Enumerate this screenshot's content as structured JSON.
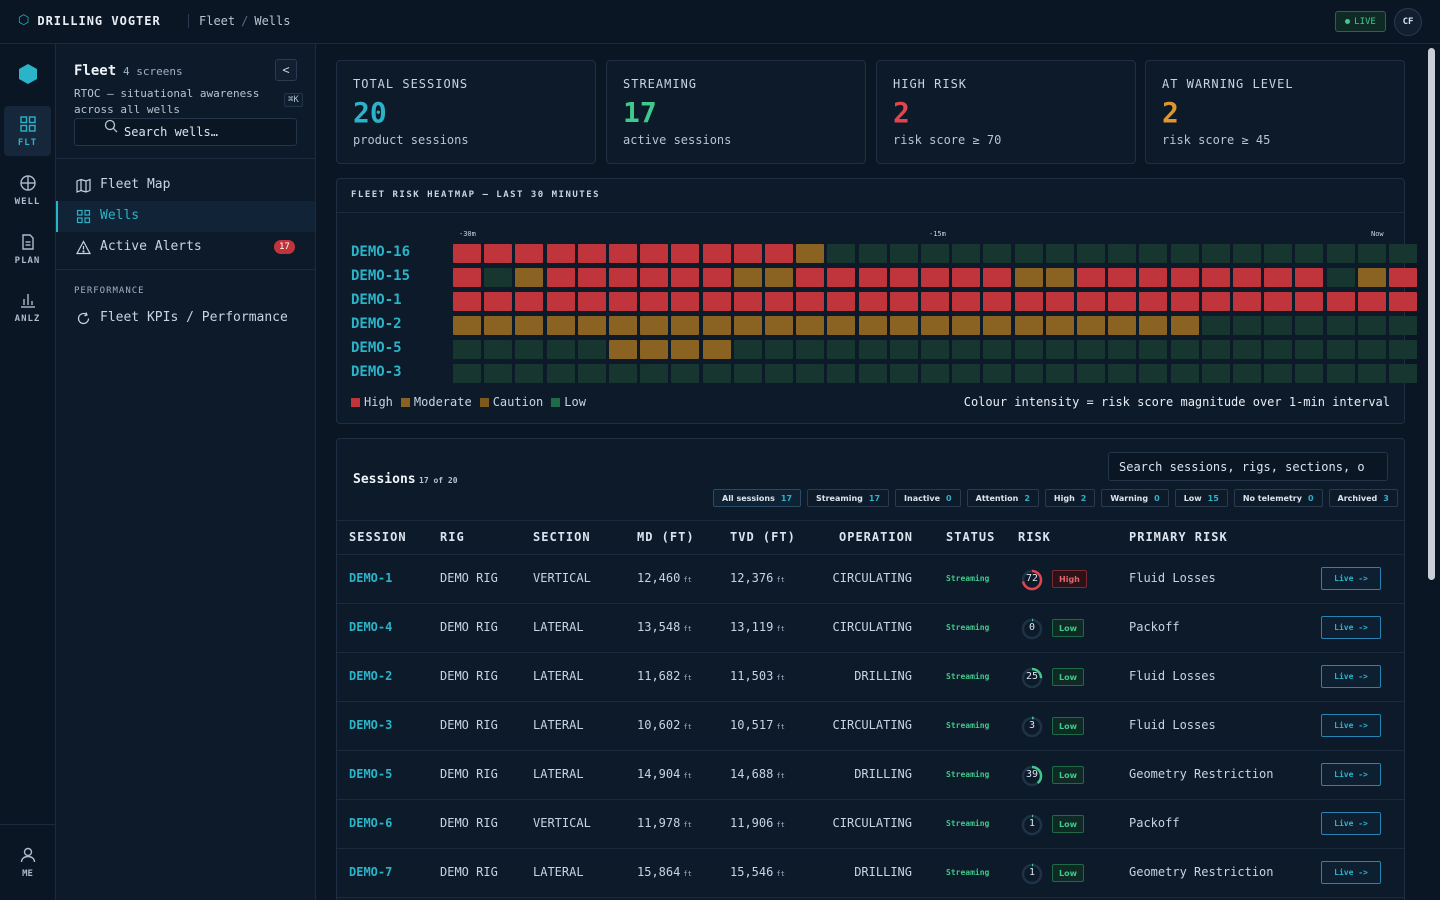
{
  "app": {
    "title": "DRILLING VOGTER",
    "breadcrumb": [
      "Fleet",
      "Wells"
    ],
    "live_label": "LIVE",
    "user_initials": "CF"
  },
  "rail": {
    "items": [
      {
        "label": "FLT",
        "icon": "grid-icon",
        "active": true
      },
      {
        "label": "WELL",
        "icon": "globe-icon",
        "active": false
      },
      {
        "label": "PLAN",
        "icon": "document-icon",
        "active": false
      },
      {
        "label": "ANLZ",
        "icon": "bar-chart-icon",
        "active": false
      }
    ],
    "me_label": "ME"
  },
  "panel": {
    "title": "Fleet",
    "count": "4 screens",
    "description": "RTOC — situational awareness across all wells",
    "shortcut": "⌘K",
    "search_placeholder": "Search wells…",
    "nav": [
      {
        "label": "Fleet Map",
        "icon": "map-icon"
      },
      {
        "label": "Wells",
        "icon": "grid-icon",
        "active": true
      },
      {
        "label": "Active Alerts",
        "icon": "alert-icon",
        "badge": "17"
      }
    ],
    "section_label": "PERFORMANCE",
    "section_nav": [
      {
        "label": "Fleet KPIs / Performance",
        "icon": "refresh-icon"
      }
    ]
  },
  "kpis": [
    {
      "label": "TOTAL SESSIONS",
      "value": "20",
      "sub": "product sessions",
      "color": "#2bb3c8"
    },
    {
      "label": "STREAMING",
      "value": "17",
      "sub": "active sessions",
      "color": "#3fc98a"
    },
    {
      "label": "HIGH RISK",
      "value": "2",
      "sub": "risk score ≥ 70",
      "color": "#e2454d"
    },
    {
      "label": "AT WARNING LEVEL",
      "value": "2",
      "sub": "risk score ≥ 45",
      "color": "#e0962e"
    }
  ],
  "heatmap": {
    "title": "FLEET RISK HEATMAP — LAST 30 MINUTES",
    "ticks": [
      "-30m",
      "-15m",
      "Now"
    ],
    "colors": {
      "H": "#c0353c",
      "M": "#8a6322",
      "C": "#7c5a1e",
      "L": "#17362f"
    },
    "rows": [
      {
        "label": "DEMO-16",
        "cells": "HHHHHHHHHHHMLLLLLLLLLLLLLLLLLLL"
      },
      {
        "label": "DEMO-15",
        "cells": "HLMHHHHHHMMHHHHHHHMMHHHHHHHHLMH"
      },
      {
        "label": "DEMO-1",
        "cells": "HHHHHHHHHHHHHHHHHHHHHHHHHHHHHHH"
      },
      {
        "label": "DEMO-2",
        "cells": "MMMMMMMMMMMMMMMMMMMMMMMMLLLLLLL"
      },
      {
        "label": "DEMO-5",
        "cells": "LLLLLMMMMLLLLLLLLLLLLLLLLLLLLLL"
      },
      {
        "label": "DEMO-3",
        "cells": "LLLLLLLLLLLLLLLLLLLLLLLLLLLLLLL"
      }
    ],
    "legend": [
      {
        "label": "High",
        "color": "#c0353c"
      },
      {
        "label": "Moderate",
        "color": "#8a6322"
      },
      {
        "label": "Caution",
        "color": "#7c5a1e"
      },
      {
        "label": "Low",
        "color": "#1f6a48"
      }
    ],
    "note": "Colour intensity = risk score magnitude over 1-min interval"
  },
  "sessions": {
    "title": "Sessions",
    "count": "17 of 20",
    "search_placeholder": "Search sessions, rigs, sections, o",
    "filters": [
      {
        "label": "All sessions",
        "count": "17",
        "active": true
      },
      {
        "label": "Streaming",
        "count": "17"
      },
      {
        "label": "Inactive",
        "count": "0"
      },
      {
        "label": "Attention",
        "count": "2"
      },
      {
        "label": "High",
        "count": "2"
      },
      {
        "label": "Warning",
        "count": "0"
      },
      {
        "label": "Low",
        "count": "15"
      },
      {
        "label": "No telemetry",
        "count": "0"
      },
      {
        "label": "Archived",
        "count": "3"
      }
    ],
    "columns": [
      "SESSION",
      "RIG",
      "SECTION",
      "MD (FT)",
      "TVD (FT)",
      "OPERATION",
      "STATUS",
      "RISK",
      "PRIMARY RISK"
    ],
    "unit": "ft",
    "action_label": "Live ->",
    "rows": [
      {
        "session": "DEMO-1",
        "rig": "DEMO RIG",
        "section": "VERTICAL",
        "md": "12,460",
        "tvd": "12,376",
        "operation": "CIRCULATING",
        "status": "Streaming",
        "risk": 72,
        "risk_level": "High",
        "primary_risk": "Fluid Losses"
      },
      {
        "session": "DEMO-4",
        "rig": "DEMO RIG",
        "section": "LATERAL",
        "md": "13,548",
        "tvd": "13,119",
        "operation": "CIRCULATING",
        "status": "Streaming",
        "risk": 0,
        "risk_level": "Low",
        "primary_risk": "Packoff"
      },
      {
        "session": "DEMO-2",
        "rig": "DEMO RIG",
        "section": "LATERAL",
        "md": "11,682",
        "tvd": "11,503",
        "operation": "DRILLING",
        "status": "Streaming",
        "risk": 25,
        "risk_level": "Low",
        "primary_risk": "Fluid Losses"
      },
      {
        "session": "DEMO-3",
        "rig": "DEMO RIG",
        "section": "LATERAL",
        "md": "10,602",
        "tvd": "10,517",
        "operation": "CIRCULATING",
        "status": "Streaming",
        "risk": 3,
        "risk_level": "Low",
        "primary_risk": "Fluid Losses"
      },
      {
        "session": "DEMO-5",
        "rig": "DEMO RIG",
        "section": "LATERAL",
        "md": "14,904",
        "tvd": "14,688",
        "operation": "DRILLING",
        "status": "Streaming",
        "risk": 39,
        "risk_level": "Low",
        "primary_risk": "Geometry Restriction"
      },
      {
        "session": "DEMO-6",
        "rig": "DEMO RIG",
        "section": "VERTICAL",
        "md": "11,978",
        "tvd": "11,906",
        "operation": "CIRCULATING",
        "status": "Streaming",
        "risk": 1,
        "risk_level": "Low",
        "primary_risk": "Packoff"
      },
      {
        "session": "DEMO-7",
        "rig": "DEMO RIG",
        "section": "LATERAL",
        "md": "15,864",
        "tvd": "15,546",
        "operation": "DRILLING",
        "status": "Streaming",
        "risk": 1,
        "risk_level": "Low",
        "primary_risk": "Geometry Restriction"
      }
    ]
  }
}
